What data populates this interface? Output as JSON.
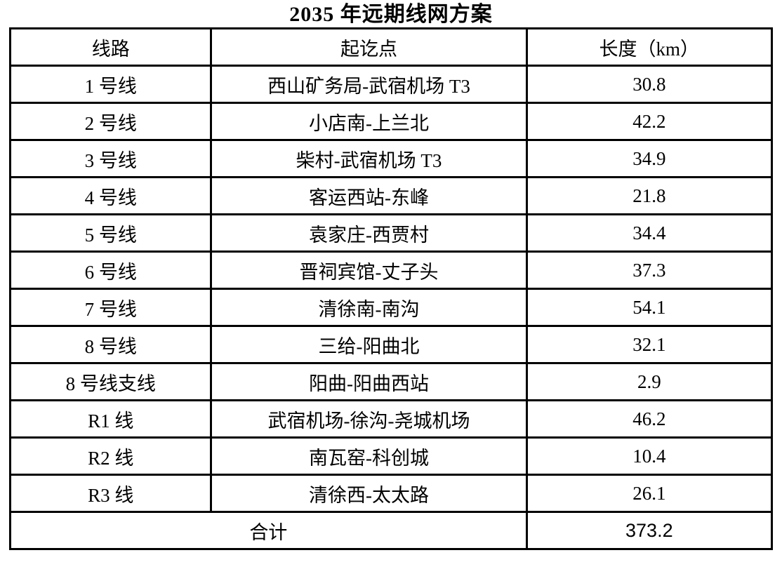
{
  "title": "2035 年远期线网方案",
  "table": {
    "headers": [
      "线路",
      "起讫点",
      "长度（km）"
    ],
    "rows": [
      {
        "line": "1 号线",
        "route": "西山矿务局-武宿机场 T3",
        "length": "30.8"
      },
      {
        "line": "2 号线",
        "route": "小店南-上兰北",
        "length": "42.2"
      },
      {
        "line": "3 号线",
        "route": "柴村-武宿机场 T3",
        "length": "34.9"
      },
      {
        "line": "4 号线",
        "route": "客运西站-东峰",
        "length": "21.8"
      },
      {
        "line": "5 号线",
        "route": "袁家庄-西贾村",
        "length": "34.4"
      },
      {
        "line": "6 号线",
        "route": "晋祠宾馆-丈子头",
        "length": "37.3"
      },
      {
        "line": "7 号线",
        "route": "清徐南-南沟",
        "length": "54.1"
      },
      {
        "line": "8 号线",
        "route": "三给-阳曲北",
        "length": "32.1"
      },
      {
        "line": "8 号线支线",
        "route": "阳曲-阳曲西站",
        "length": "2.9"
      },
      {
        "line": "R1 线",
        "route": "武宿机场-徐沟-尧城机场",
        "length": "46.2"
      },
      {
        "line": "R2 线",
        "route": "南瓦窑-科创城",
        "length": "10.4"
      },
      {
        "line": "R3 线",
        "route": "清徐西-太太路",
        "length": "26.1"
      }
    ],
    "footer": {
      "label": "合计",
      "total": "373.2"
    },
    "colors": {
      "border": "#000000",
      "text": "#000000",
      "background": "#ffffff"
    }
  }
}
